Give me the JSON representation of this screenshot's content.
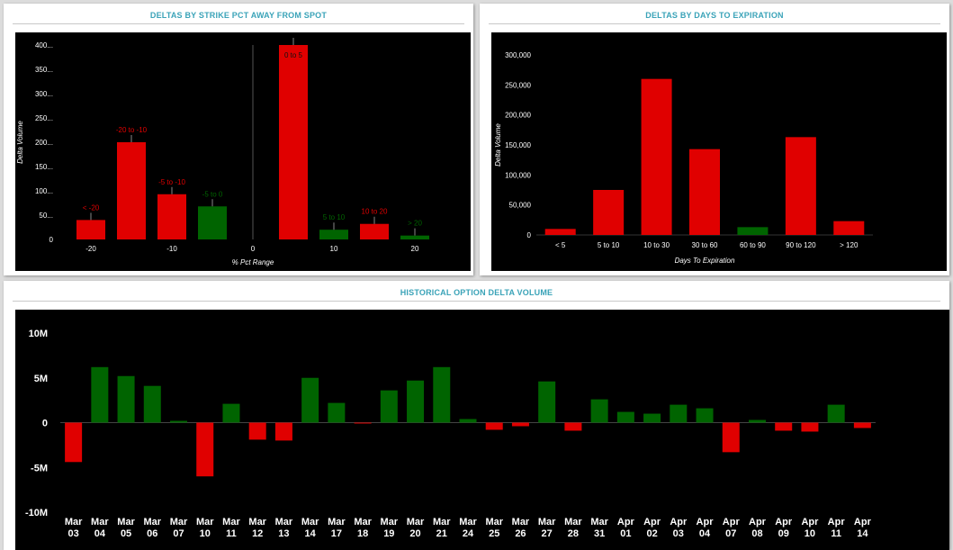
{
  "colors": {
    "positive": "#006400",
    "negative": "#e00000",
    "title": "#3aa3b8",
    "plot_bg": "#000000",
    "axis_text": "#ffffff"
  },
  "panels": {
    "strike": {
      "title": "DELTAS BY STRIKE PCT AWAY FROM SPOT"
    },
    "expiry": {
      "title": "DELTAS BY DAYS TO EXPIRATION"
    },
    "history": {
      "title": "HISTORICAL OPTION DELTA VOLUME"
    }
  },
  "chart_data": [
    {
      "id": "strike",
      "type": "bar",
      "title": "DELTAS BY STRIKE PCT AWAY FROM SPOT",
      "xlabel": "% Pct Range",
      "ylabel": "Delta Volume",
      "xlim": [
        -24,
        24
      ],
      "ylim": [
        0,
        400
      ],
      "yticks": [
        0,
        50,
        100,
        150,
        200,
        250,
        300,
        350,
        400
      ],
      "ytick_labels": [
        "0",
        "50...",
        "100...",
        "150...",
        "200...",
        "250...",
        "300...",
        "350...",
        "400..."
      ],
      "xticks": [
        -20,
        -10,
        0,
        10,
        20
      ],
      "xtick_labels": [
        "-20",
        "-10",
        "0",
        "10",
        "20"
      ],
      "bars": [
        {
          "label": "< -20",
          "x": -20,
          "value": 40,
          "sign": "negative"
        },
        {
          "label": "-20 to -10",
          "x": -15,
          "value": 200,
          "sign": "negative"
        },
        {
          "label": "-5 to -10",
          "x": -10,
          "value": 93,
          "sign": "negative"
        },
        {
          "label": "-5 to 0",
          "x": -5,
          "value": 68,
          "sign": "positive"
        },
        {
          "label": "0 to 5",
          "x": 5,
          "value": 400,
          "sign": "negative"
        },
        {
          "label": "5 to 10",
          "x": 10,
          "value": 20,
          "sign": "positive"
        },
        {
          "label": "10 to 20",
          "x": 15,
          "value": 32,
          "sign": "negative"
        },
        {
          "label": "> 20",
          "x": 20,
          "value": 8,
          "sign": "positive"
        }
      ],
      "grid": false
    },
    {
      "id": "expiry",
      "type": "bar",
      "title": "DELTAS BY DAYS TO EXPIRATION",
      "xlabel": "Days To Expiration",
      "ylabel": "Delta Volume",
      "ylim": [
        0,
        300000
      ],
      "yticks": [
        0,
        50000,
        100000,
        150000,
        200000,
        250000,
        300000
      ],
      "ytick_labels": [
        "0",
        "50,000",
        "100,000",
        "150,000",
        "200,000",
        "250,000",
        "300,000"
      ],
      "categories": [
        "< 5",
        "5 to 10",
        "10 to 30",
        "30 to 60",
        "60 to 90",
        "90 to 120",
        "> 120"
      ],
      "values": [
        10000,
        75000,
        260000,
        143000,
        13000,
        163000,
        23000
      ],
      "signs": [
        "negative",
        "negative",
        "negative",
        "negative",
        "positive",
        "negative",
        "negative"
      ],
      "grid": false
    },
    {
      "id": "history",
      "type": "bar",
      "title": "HISTORICAL OPTION DELTA VOLUME",
      "ylim": [
        -10000000,
        10000000
      ],
      "yticks": [
        -10000000,
        -5000000,
        0,
        5000000,
        10000000
      ],
      "ytick_labels": [
        "-10M",
        "-5M",
        "0",
        "5M",
        "10M"
      ],
      "categories": [
        "Mar 03",
        "Mar 04",
        "Mar 05",
        "Mar 06",
        "Mar 07",
        "Mar 10",
        "Mar 11",
        "Mar 12",
        "Mar 13",
        "Mar 14",
        "Mar 17",
        "Mar 18",
        "Mar 19",
        "Mar 20",
        "Mar 21",
        "Mar 24",
        "Mar 25",
        "Mar 26",
        "Mar 27",
        "Mar 28",
        "Mar 31",
        "Apr 01",
        "Apr 02",
        "Apr 03",
        "Apr 04",
        "Apr 07",
        "Apr 08",
        "Apr 09",
        "Apr 10",
        "Apr 11",
        "Apr 14"
      ],
      "values": [
        -4400000,
        6200000,
        5200000,
        4100000,
        200000,
        -6000000,
        2100000,
        -1900000,
        -2000000,
        5000000,
        2200000,
        -100000,
        3600000,
        4700000,
        6200000,
        400000,
        -800000,
        -400000,
        4600000,
        -900000,
        2600000,
        1200000,
        1000000,
        2000000,
        1600000,
        -3300000,
        300000,
        -900000,
        -1000000,
        2000000,
        -600000
      ],
      "grid": false
    }
  ]
}
